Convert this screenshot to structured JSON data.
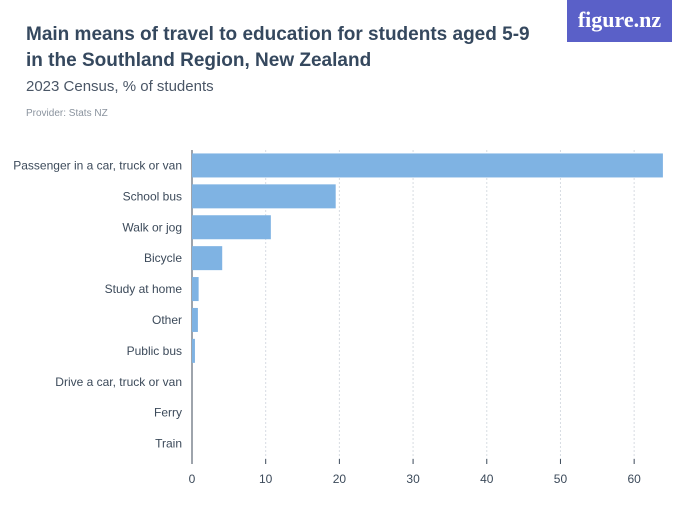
{
  "header": {
    "title": "Main means of travel to education for students aged 5-9 in the Southland Region, New Zealand",
    "subtitle": "2023 Census, % of students",
    "provider": "Provider: Stats NZ",
    "logo": "figure.nz"
  },
  "colors": {
    "bar": "#7fb3e3",
    "grid": "#d7dce2",
    "axis": "#3c4a5a"
  },
  "chart_data": {
    "type": "bar",
    "orientation": "horizontal",
    "categories": [
      "Passenger in a car, truck or van",
      "School bus",
      "Walk or jog",
      "Bicycle",
      "Study at home",
      "Other",
      "Public bus",
      "Drive a car, truck or van",
      "Ferry",
      "Train"
    ],
    "values": [
      63.9,
      19.5,
      10.7,
      4.1,
      0.9,
      0.8,
      0.4,
      0,
      0,
      0
    ],
    "xlim": [
      0,
      65
    ],
    "xticks": [
      0,
      10,
      20,
      30,
      40,
      50,
      60
    ],
    "grid": true
  }
}
